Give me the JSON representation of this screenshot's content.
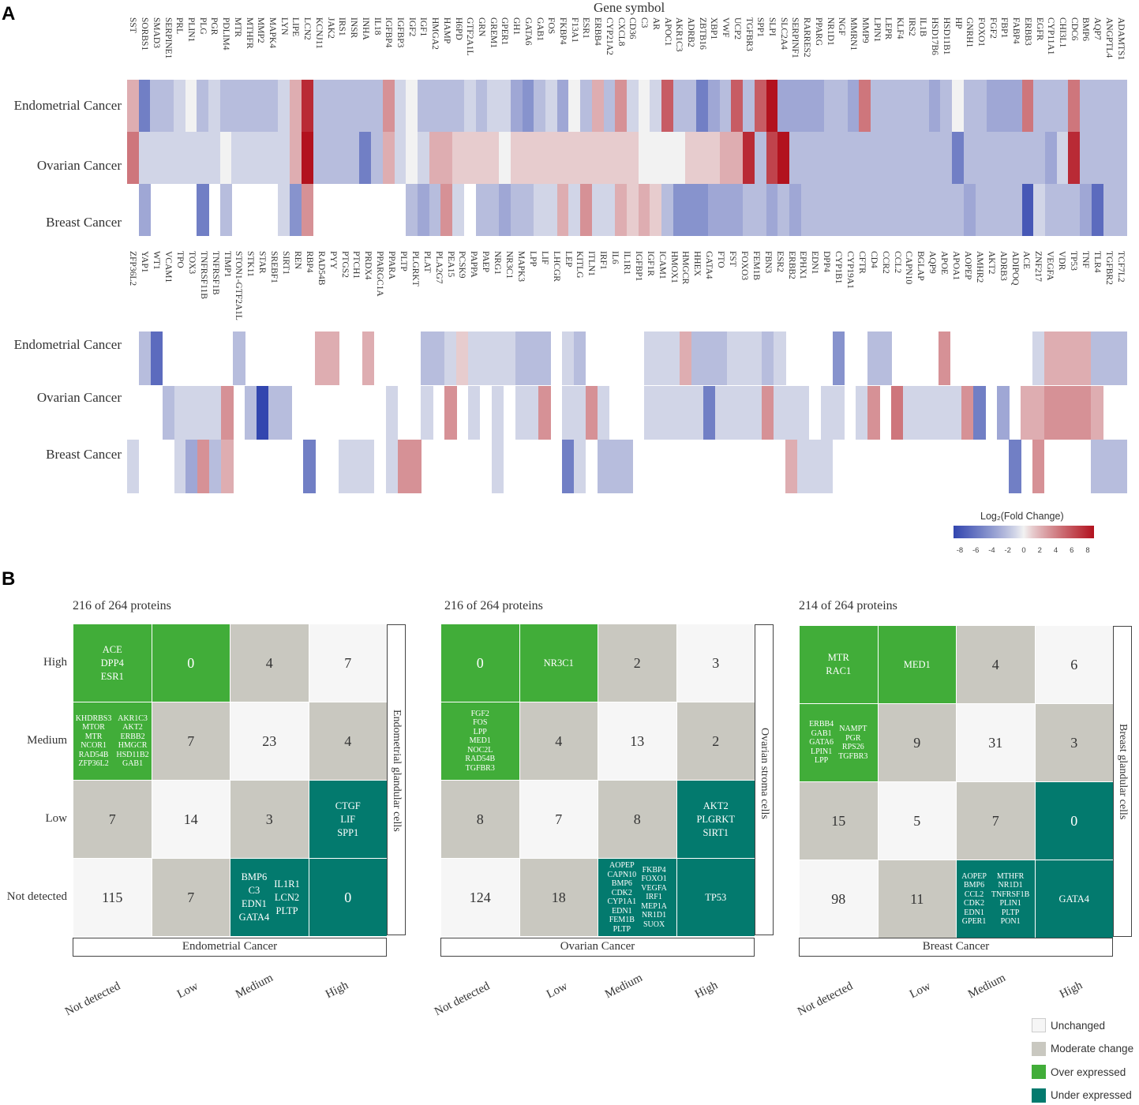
{
  "panel_a_label": "A",
  "panel_b_label": "B",
  "chart_data": [
    {
      "type": "heatmap",
      "title": "Gene symbol",
      "rows": [
        "Endometrial Cancer",
        "Ovarian Cancer",
        "Breast Cancer"
      ],
      "colorbar": {
        "label": "Log₂(Fold Change)",
        "range": [
          -8,
          8
        ],
        "ticks": [
          "-8",
          "-6",
          "-4",
          "-2",
          "0",
          "2",
          "4",
          "6",
          "8"
        ]
      },
      "genes": [
        "SST",
        "SORBS1",
        "SMAD3",
        "SERPINE1",
        "PRL",
        "PLIN1",
        "PLG",
        "PGR",
        "PDLIM4",
        "MTR",
        "MTHFR",
        "MMP2",
        "MAPK4",
        "LYN",
        "LIPE",
        "LCN2",
        "KCNJ11",
        "JAK2",
        "IRS1",
        "INSR",
        "INHA",
        "IL18",
        "IGFBP4",
        "IGFBP3",
        "IGF2",
        "IGF1",
        "HMGA2",
        "HAMP",
        "H6PD",
        "GTF2A1L",
        "GRN",
        "GREM1",
        "GPER1",
        "GH1",
        "GATA6",
        "GAB1",
        "FOS",
        "FKBP4",
        "F13A1",
        "ESR1",
        "ERBB4",
        "CYP21A2",
        "CXCL8",
        "CD36",
        "C3",
        "AR",
        "APOC1",
        "AKR1C3",
        "ADRB2",
        "ZBTB16",
        "XBP1",
        "VWF",
        "UCP2",
        "TGFBR3",
        "SPP1",
        "SLPI",
        "SLC2A4",
        "SERPINF1",
        "RARRES2",
        "PPARG",
        "NR1D1",
        "NGF",
        "MMRN1",
        "MMP9",
        "LPIN1",
        "LEPR",
        "KLF4",
        "IRS2",
        "IL1B",
        "HSD17B6",
        "HSD11B1",
        "HP",
        "GNRH1",
        "FOXO1",
        "FGF2",
        "FBP1",
        "FABP4",
        "ERBB3",
        "EGFR",
        "CYP11A1",
        "CHI3L1",
        "CDC6",
        "BMP6",
        "AQP7",
        "ANGPTL4",
        "ADAMTS1"
      ],
      "values": {
        "Endometrial Cancer": [
          2,
          -5,
          -2,
          -2,
          -1,
          0,
          -2,
          -1,
          -2,
          -2,
          -2,
          -2,
          -2,
          -1,
          2,
          7,
          -2,
          -2,
          -2,
          -2,
          -2,
          -2,
          3,
          -1,
          0,
          -2,
          -2,
          -2,
          -2,
          -1,
          -2,
          -1,
          -1,
          -3,
          -4,
          -2,
          -1,
          -3,
          0,
          -2,
          2,
          -2,
          3,
          -1,
          0,
          -1,
          5,
          -2,
          -2,
          -5,
          -3,
          -2,
          5,
          -2,
          5,
          8,
          -3,
          -3,
          -3,
          -3,
          -2,
          -2,
          -3,
          4,
          -2,
          -2,
          -2,
          -2,
          -2,
          -3,
          -2,
          0,
          -2,
          -2,
          -3,
          -3,
          -3,
          4,
          -2,
          -2,
          -2,
          4,
          -2,
          -2,
          -2,
          -2
        ],
        "Ovarian Cancer": [
          4,
          -1,
          -1,
          -1,
          -1,
          -1,
          -1,
          -1,
          0,
          -1,
          -1,
          -1,
          -1,
          -1,
          2,
          8,
          -2,
          -2,
          -2,
          -2,
          -5,
          -2,
          2,
          -1,
          0,
          -1,
          2,
          2,
          1,
          1,
          1,
          1,
          0,
          1,
          1,
          1,
          1,
          1,
          1,
          1,
          1,
          1,
          1,
          1,
          0,
          0,
          0,
          0,
          1,
          1,
          1,
          2,
          2,
          7,
          -2,
          6,
          9,
          -2,
          -2,
          -2,
          -2,
          -2,
          -2,
          -2,
          -2,
          -2,
          -2,
          -2,
          -2,
          -2,
          -2,
          -5,
          -2,
          -2,
          -2,
          -2,
          -2,
          -2,
          -2,
          -3,
          -1,
          7,
          -2,
          -2,
          -2,
          -2
        ],
        "Breast Cancer": [
          null,
          -3,
          null,
          null,
          null,
          null,
          -5,
          null,
          -2,
          null,
          null,
          null,
          null,
          -1,
          -4,
          3,
          null,
          null,
          null,
          null,
          null,
          null,
          null,
          null,
          -2,
          -3,
          -2,
          3,
          -1,
          null,
          -2,
          -2,
          -3,
          -2,
          -2,
          -1,
          -1,
          2,
          -1,
          3,
          -1,
          -1,
          2,
          1,
          2,
          1,
          -2,
          -4,
          -4,
          -4,
          -3,
          -3,
          -3,
          -2,
          -2,
          -3,
          -2,
          -3,
          -2,
          -2,
          -2,
          -2,
          -2,
          -2,
          -2,
          -2,
          -2,
          -2,
          -2,
          -2,
          -2,
          -2,
          -3,
          -2,
          -2,
          -2,
          -2,
          -7,
          -1,
          -2,
          -2,
          -2,
          -3,
          -6,
          -2,
          -2
        ]
      }
    },
    {
      "type": "heatmap",
      "title": "",
      "rows": [
        "Endometrial Cancer",
        "Ovarian Cancer",
        "Breast Cancer"
      ],
      "genes": [
        "ZFP36L2",
        "YAP1",
        "WT1",
        "VCAM1",
        "TPO",
        "TOX3",
        "TNFRSF11B",
        "TNFRSF1B",
        "TIMP1",
        "STON1-GTF2A1L",
        "STK11",
        "STAR",
        "SREBF1",
        "SIRT1",
        "REN",
        "RBP4",
        "RAD54B",
        "PYY",
        "PTGS2",
        "PTCH1",
        "PRDX4",
        "PPARGC1A",
        "PPARA",
        "PLTP",
        "PLGRKT",
        "PLAT",
        "PLA2G7",
        "PEA15",
        "PCSK9",
        "PAPPA",
        "PAEP",
        "NRG1",
        "NR3C1",
        "MAPK3",
        "LPP",
        "LIF",
        "LHCGR",
        "LEP",
        "KITLG",
        "ITLN1",
        "IRF1",
        "IL6",
        "IL1R1",
        "IGFBP1",
        "IGF1R",
        "ICAM1",
        "HMOX1",
        "HMGCR",
        "HHEX",
        "GATA4",
        "FTO",
        "FST",
        "FOXO3",
        "FEM1B",
        "FBN3",
        "ESR2",
        "ERBB2",
        "EPHX1",
        "EDN1",
        "DPP4",
        "CYP1B1",
        "CYP19A1",
        "CFTR",
        "CD4",
        "CCR2",
        "CCL2",
        "CAPN10",
        "BGLAP",
        "AQP9",
        "APOE",
        "APOA1",
        "AOPEP",
        "AMHR2",
        "AKT2",
        "ADRB3",
        "ADIPOQ",
        "ACE",
        "ZNF217",
        "VEGFA",
        "VDR",
        "TP53",
        "TNF",
        "TLR4",
        "TGFBR2",
        "TCF7L2"
      ],
      "values": {
        "Endometrial Cancer": [
          null,
          -2,
          -6,
          null,
          null,
          null,
          null,
          null,
          null,
          -2,
          null,
          null,
          null,
          null,
          null,
          null,
          2,
          2,
          null,
          null,
          2,
          null,
          null,
          null,
          null,
          -2,
          -2,
          -1,
          1,
          -1,
          -1,
          -1,
          -1,
          -2,
          -2,
          -2,
          null,
          -1,
          -2,
          null,
          null,
          null,
          null,
          null,
          -1,
          -1,
          -1,
          2,
          -2,
          -2,
          -2,
          -1,
          -1,
          -1,
          -2,
          -1,
          null,
          null,
          null,
          null,
          -4,
          null,
          null,
          -2,
          -2,
          null,
          null,
          null,
          null,
          3,
          null,
          null,
          null,
          null,
          null,
          null,
          null,
          -1,
          2,
          2,
          2,
          2,
          -2,
          -2,
          -2
        ],
        "Ovarian Cancer": [
          null,
          null,
          null,
          -2,
          -1,
          -1,
          -1,
          -1,
          3,
          null,
          -2,
          -8,
          -2,
          -2,
          null,
          null,
          null,
          null,
          null,
          null,
          null,
          null,
          -1,
          null,
          null,
          -1,
          null,
          3,
          null,
          -1,
          null,
          -1,
          null,
          -1,
          -1,
          3,
          null,
          -1,
          -1,
          3,
          -1,
          null,
          null,
          null,
          -1,
          -1,
          -1,
          -1,
          -1,
          -5,
          -1,
          -1,
          -1,
          -1,
          3,
          -1,
          -1,
          -1,
          null,
          -1,
          -1,
          null,
          -1,
          3,
          null,
          4,
          -1,
          -1,
          -1,
          -1,
          -1,
          3,
          -5,
          null,
          -3,
          null,
          2,
          2,
          3,
          3,
          3,
          3,
          2,
          null,
          null
        ],
        "Breast Cancer": [
          -1,
          null,
          null,
          null,
          -1,
          -3,
          3,
          -2,
          2,
          null,
          null,
          null,
          null,
          null,
          null,
          -5,
          null,
          null,
          -1,
          -1,
          -1,
          null,
          -1,
          3,
          3,
          null,
          null,
          null,
          null,
          null,
          null,
          -1,
          null,
          null,
          null,
          null,
          null,
          -5,
          -1,
          null,
          -2,
          -2,
          -2,
          null,
          null,
          null,
          null,
          null,
          null,
          null,
          null,
          null,
          null,
          null,
          null,
          null,
          2,
          -1,
          -1,
          -1,
          null,
          null,
          null,
          null,
          null,
          null,
          null,
          null,
          null,
          null,
          null,
          null,
          null,
          null,
          null,
          -5,
          null,
          3,
          null,
          null,
          null,
          null,
          -2,
          -2,
          -2
        ]
      }
    },
    {
      "type": "table",
      "title": "216 of 264 proteins",
      "x_categories": [
        "Not detected",
        "Low",
        "Medium",
        "High"
      ],
      "y_categories": [
        "High",
        "Medium",
        "Low",
        "Not detected"
      ],
      "x_label": "Endometrial Cancer",
      "y_label": "Endometrial glandular cells",
      "cells": [
        [
          {
            "cat": "over",
            "text": [
              "ACE",
              "DPP4",
              "ESR1"
            ]
          },
          {
            "cat": "over",
            "text": "0"
          },
          {
            "cat": "moderate",
            "text": "4"
          },
          {
            "cat": "unchanged",
            "text": "7"
          }
        ],
        [
          {
            "cat": "over",
            "small": [
              [
                "KHDRBS3",
                "MTOR",
                "MTR",
                "NCOR1",
                "RAD54B",
                "ZFP36L2"
              ],
              [
                "AKR1C3",
                "AKT2",
                "ERBB2",
                "HMGCR",
                "HSD11B2",
                "GAB1"
              ]
            ]
          },
          {
            "cat": "moderate",
            "text": "7"
          },
          {
            "cat": "unchanged",
            "text": "23"
          },
          {
            "cat": "moderate",
            "text": "4"
          }
        ],
        [
          {
            "cat": "moderate",
            "text": "7"
          },
          {
            "cat": "unchanged",
            "text": "14"
          },
          {
            "cat": "moderate",
            "text": "3"
          },
          {
            "cat": "under",
            "text": [
              "CTGF",
              "LIF",
              "SPP1"
            ]
          }
        ],
        [
          {
            "cat": "unchanged",
            "text": "115"
          },
          {
            "cat": "moderate",
            "text": "7"
          },
          {
            "cat": "under",
            "cols": [
              [
                "BMP6",
                "C3",
                "EDN1",
                "GATA4"
              ],
              [
                "IL1R1",
                "LCN2",
                "PLTP"
              ]
            ]
          },
          {
            "cat": "under",
            "text": "0"
          }
        ]
      ]
    },
    {
      "type": "table",
      "title": "216 of 264 proteins",
      "x_categories": [
        "Not detected",
        "Low",
        "Medium",
        "High"
      ],
      "y_categories": [
        "High",
        "Medium",
        "Low",
        "Not detected"
      ],
      "x_label": "Ovarian Cancer",
      "y_label": "Ovarian stroma cells",
      "cells": [
        [
          {
            "cat": "over",
            "text": "0"
          },
          {
            "cat": "over",
            "text": "NR3C1"
          },
          {
            "cat": "moderate",
            "text": "2"
          },
          {
            "cat": "unchanged",
            "text": "3"
          }
        ],
        [
          {
            "cat": "over",
            "small": [
              [
                "FGF2",
                "FOS",
                "LPP",
                "MED1",
                "NOC2L",
                "RAD54B",
                "TGFBR3"
              ]
            ]
          },
          {
            "cat": "moderate",
            "text": "4"
          },
          {
            "cat": "unchanged",
            "text": "13"
          },
          {
            "cat": "moderate",
            "text": "2"
          }
        ],
        [
          {
            "cat": "moderate",
            "text": "8"
          },
          {
            "cat": "unchanged",
            "text": "7"
          },
          {
            "cat": "moderate",
            "text": "8"
          },
          {
            "cat": "under",
            "text": [
              "AKT2",
              "PLGRKT",
              "SIRT1"
            ]
          }
        ],
        [
          {
            "cat": "unchanged",
            "text": "124"
          },
          {
            "cat": "moderate",
            "text": "18"
          },
          {
            "cat": "under",
            "small": [
              [
                "AOPEP",
                "CAPN10",
                "BMP6",
                "CDK2",
                "CYP1A1",
                "EDN1",
                "FEM1B",
                "PLTP"
              ],
              [
                "FKBP4",
                "FOXO1",
                "VEGFA",
                "IRF1",
                "MEP1A",
                "NR1D1",
                "SUOX"
              ]
            ]
          },
          {
            "cat": "under",
            "text": "TP53"
          }
        ]
      ]
    },
    {
      "type": "table",
      "title": "214 of 264 proteins",
      "x_categories": [
        "Not detected",
        "Low",
        "Medium",
        "High"
      ],
      "y_categories": [
        "High",
        "Medium",
        "Low",
        "Not detected"
      ],
      "x_label": "Breast Cancer",
      "y_label": "Breast glandular cells",
      "cells": [
        [
          {
            "cat": "over",
            "text": [
              "MTR",
              "RAC1"
            ]
          },
          {
            "cat": "over",
            "text": "MED1"
          },
          {
            "cat": "moderate",
            "text": "4"
          },
          {
            "cat": "unchanged",
            "text": "6"
          }
        ],
        [
          {
            "cat": "over",
            "small": [
              [
                "ERBB4",
                "GAB1",
                "GATA6",
                "LPIN1",
                "LPP"
              ],
              [
                "NAMPT",
                "PGR",
                "RPS26",
                "TGFBR3"
              ]
            ]
          },
          {
            "cat": "moderate",
            "text": "9"
          },
          {
            "cat": "unchanged",
            "text": "31"
          },
          {
            "cat": "moderate",
            "text": "3"
          }
        ],
        [
          {
            "cat": "moderate",
            "text": "15"
          },
          {
            "cat": "unchanged",
            "text": "5"
          },
          {
            "cat": "moderate",
            "text": "7"
          },
          {
            "cat": "under",
            "text": "0"
          }
        ],
        [
          {
            "cat": "unchanged",
            "text": "98"
          },
          {
            "cat": "moderate",
            "text": "11"
          },
          {
            "cat": "under",
            "small": [
              [
                "AOPEP",
                "BMP6",
                "CCL2",
                "CDK2",
                "EDN1",
                "GPER1"
              ],
              [
                "MTHFR",
                "NR1D1",
                "TNFRSF1B",
                "PLIN1",
                "PLTP",
                "PON1"
              ]
            ]
          },
          {
            "cat": "under",
            "text": "GATA4"
          }
        ]
      ]
    }
  ],
  "legend": [
    {
      "key": "unchanged",
      "label": "Unchanged",
      "color": "#f6f6f6"
    },
    {
      "key": "moderate",
      "label": "Moderate change",
      "color": "#c9c8c0"
    },
    {
      "key": "over",
      "label": "Over expressed",
      "color": "#41ad39"
    },
    {
      "key": "under",
      "label": "Under expressed",
      "color": "#037a6e"
    }
  ]
}
